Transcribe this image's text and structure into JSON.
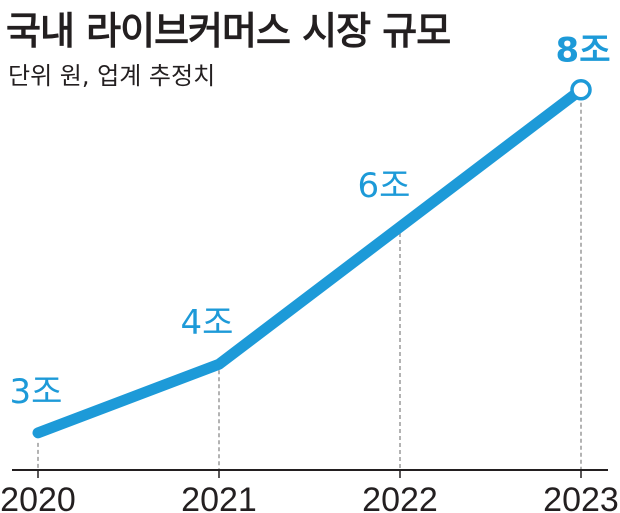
{
  "title": "국내 라이브커머스 시장 규모",
  "subtitle": "단위 원, 업계 추정치",
  "chart_data": {
    "type": "line",
    "title": "국내 라이브커머스 시장 규모",
    "subtitle": "단위 원, 업계 추정치",
    "categories": [
      "2020",
      "2021",
      "2022",
      "2023"
    ],
    "values": [
      3,
      4,
      6,
      8
    ],
    "labels": [
      "3조",
      "4조",
      "6조",
      "8조"
    ],
    "unit": "조 원",
    "ylim": [
      2.75,
      8.2
    ],
    "grid": "vertical dashed guides at each year",
    "color": "#1d9ad8",
    "axis_color": "#231f20",
    "highlight_last": true
  }
}
